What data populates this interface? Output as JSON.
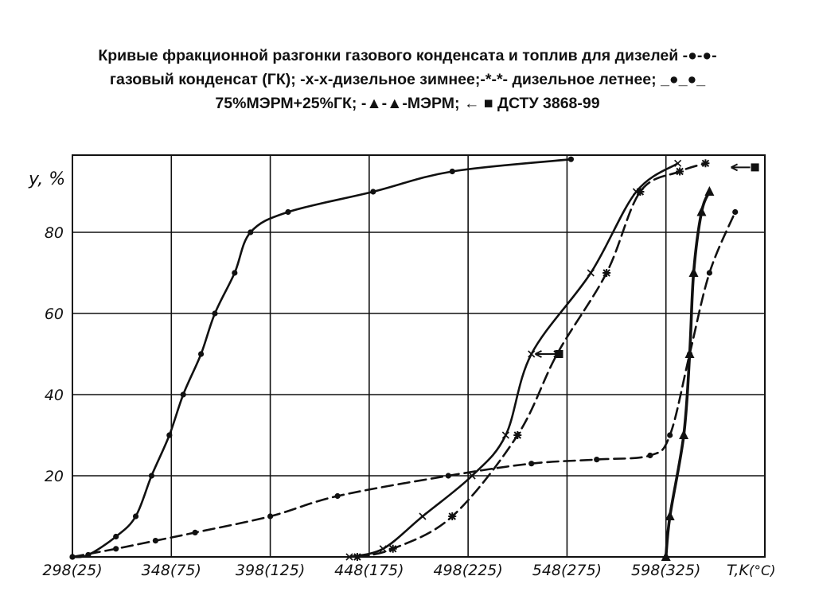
{
  "title": {
    "line1": "Кривые фракционной разгонки газового конденсата и топлив для дизелей -●-●-",
    "line2": "газовый конденсат (ГК); -х-х-дизельное зимнее;-*-*- дизельное летнее; _●_●_",
    "line3": "75%МЭРМ+25%ГК; -▲-▲-МЭРМ; ← ■ ДСТУ 3868-99"
  },
  "chart_data": {
    "type": "line",
    "ylabel": "y, %",
    "xlabel": "T,K (°C)",
    "xlim": [
      298,
      648
    ],
    "ylim": [
      0,
      100
    ],
    "xticks": [
      {
        "value": 298,
        "label": "298(25)"
      },
      {
        "value": 348,
        "label": "348(75)"
      },
      {
        "value": 398,
        "label": "398(125)"
      },
      {
        "value": 448,
        "label": "448(175)"
      },
      {
        "value": 498,
        "label": "498(225)"
      },
      {
        "value": 548,
        "label": "548(275)"
      },
      {
        "value": 598,
        "label": "598(325)"
      }
    ],
    "xlabel_parts": [
      "T,K",
      "(°C)"
    ],
    "yticks": [
      {
        "value": 20,
        "label": "20"
      },
      {
        "value": 40,
        "label": "40"
      },
      {
        "value": 60,
        "label": "60"
      },
      {
        "value": 80,
        "label": "80"
      }
    ],
    "grid": true,
    "series": [
      {
        "marker": "dot",
        "dash": "solid",
        "x": [
          298,
          306,
          320,
          330,
          338,
          347,
          354,
          363,
          370,
          380,
          388,
          407,
          450,
          490,
          550
        ],
        "y": [
          0,
          0.5,
          5,
          10,
          20,
          30,
          40,
          50,
          60,
          70,
          80,
          85,
          90,
          95,
          98
        ]
      },
      {
        "marker": "x",
        "dash": "solid",
        "x": [
          438,
          455,
          475,
          500,
          517,
          530,
          560,
          583,
          604
        ],
        "y": [
          0,
          2,
          10,
          20,
          30,
          50,
          70,
          90,
          97
        ]
      },
      {
        "marker": "star",
        "dash": "dashed",
        "x": [
          442,
          460,
          490,
          523,
          543,
          568,
          585,
          605,
          618
        ],
        "y": [
          0,
          2,
          10,
          30,
          50,
          70,
          90,
          95,
          97
        ]
      },
      {
        "marker": "dot",
        "dash": "dashed",
        "x": [
          298,
          320,
          340,
          360,
          398,
          432,
          488,
          530,
          563,
          590,
          600,
          610,
          620,
          633
        ],
        "y": [
          0,
          2,
          4,
          6,
          10,
          15,
          20,
          23,
          24,
          25,
          30,
          50,
          70,
          85
        ]
      },
      {
        "marker": "triangle",
        "dash": "solid",
        "x": [
          598,
          600,
          607,
          610,
          612,
          616,
          620
        ],
        "y": [
          0,
          10,
          30,
          50,
          70,
          85,
          90
        ]
      }
    ],
    "dstu": [
      {
        "x": 544,
        "y": 50
      },
      {
        "x": 643,
        "y": 96
      }
    ]
  }
}
